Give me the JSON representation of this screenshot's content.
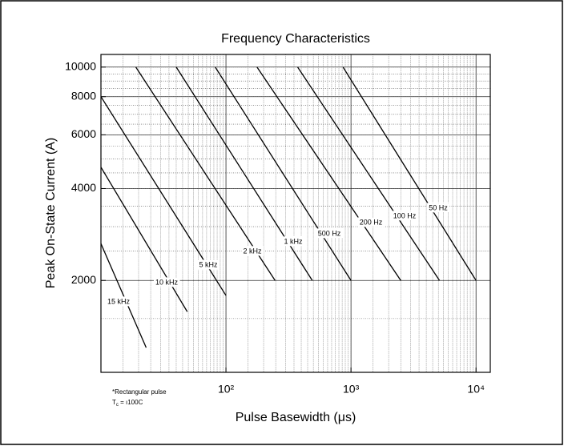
{
  "chart_data": {
    "type": "line",
    "title": "Frequency Characteristics",
    "x_label": "Pulse Basewidth (μs)",
    "y_label": "Peak On-State Current (A)",
    "log_x": true,
    "log_y": true,
    "grid": true,
    "xlim": [
      10,
      13000
    ],
    "ylim": [
      1000,
      11000
    ],
    "xticks": [
      {
        "value": 100,
        "label": "10²"
      },
      {
        "value": 1000,
        "label": "10³"
      },
      {
        "value": 10000,
        "label": "10⁴"
      }
    ],
    "yticks": [
      2000,
      4000,
      6000,
      8000,
      10000
    ],
    "notes": [
      "*Rectangular pulse"
    ],
    "tc_note": {
      "symbol": "T",
      "subscript": "c",
      "text": " = ı100C"
    },
    "color": "#000000",
    "series": [
      {
        "name": "50 Hz",
        "x": [
          863,
          10000
        ],
        "values": [
          10000,
          2000
        ]
      },
      {
        "name": "100 Hz",
        "x": [
          374,
          5100
        ],
        "values": [
          10000,
          2000
        ]
      },
      {
        "name": "200 Hz",
        "x": [
          177,
          2500
        ],
        "values": [
          10000,
          2000
        ]
      },
      {
        "name": "500 Hz",
        "x": [
          82,
          1000
        ],
        "values": [
          10000,
          2000
        ]
      },
      {
        "name": "1 kHz",
        "x": [
          40,
          490
        ],
        "values": [
          10000,
          2000
        ]
      },
      {
        "name": "2 kHz",
        "x": [
          19,
          247
        ],
        "values": [
          10000,
          2000
        ]
      },
      {
        "name": "5 kHz",
        "x": [
          10,
          100
        ],
        "values": [
          8000,
          1785
        ]
      },
      {
        "name": "10 kHz",
        "x": [
          10,
          49
        ],
        "values": [
          4700,
          1580
        ]
      },
      {
        "name": "15 kHz",
        "x": [
          10,
          23
        ],
        "values": [
          2640,
          1205
        ]
      }
    ]
  }
}
